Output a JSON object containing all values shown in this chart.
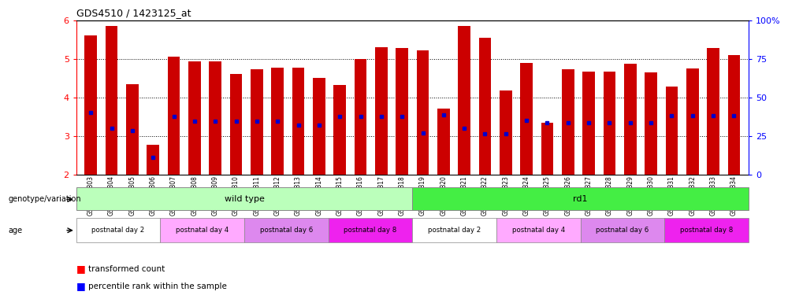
{
  "title": "GDS4510 / 1423125_at",
  "samples": [
    "GSM1024803",
    "GSM1024804",
    "GSM1024805",
    "GSM1024806",
    "GSM1024807",
    "GSM1024808",
    "GSM1024809",
    "GSM1024810",
    "GSM1024811",
    "GSM1024812",
    "GSM1024813",
    "GSM1024814",
    "GSM1024815",
    "GSM1024816",
    "GSM1024817",
    "GSM1024818",
    "GSM1024819",
    "GSM1024820",
    "GSM1024821",
    "GSM1024822",
    "GSM1024823",
    "GSM1024824",
    "GSM1024825",
    "GSM1024826",
    "GSM1024827",
    "GSM1024828",
    "GSM1024829",
    "GSM1024830",
    "GSM1024831",
    "GSM1024832",
    "GSM1024833",
    "GSM1024834"
  ],
  "bar_values": [
    5.6,
    5.85,
    4.35,
    2.78,
    5.05,
    4.93,
    4.93,
    4.6,
    4.73,
    4.76,
    4.76,
    4.5,
    4.33,
    5.0,
    5.3,
    5.27,
    5.22,
    3.72,
    5.84,
    5.55,
    4.17,
    4.9,
    3.35,
    4.73,
    4.66,
    4.66,
    4.88,
    4.65,
    4.29,
    4.75,
    5.28,
    5.1
  ],
  "percentile_values": [
    3.6,
    3.2,
    3.15,
    2.45,
    3.5,
    3.38,
    3.38,
    3.38,
    3.38,
    3.38,
    3.28,
    3.28,
    3.5,
    3.5,
    3.5,
    3.5,
    3.08,
    3.55,
    3.2,
    3.05,
    3.05,
    3.4,
    3.35,
    3.35,
    3.35,
    3.35,
    3.35,
    3.35,
    3.52,
    3.52,
    3.52,
    3.52
  ],
  "ylim_left": [
    2,
    6
  ],
  "ylim_right": [
    0,
    100
  ],
  "yticks_left": [
    2,
    3,
    4,
    5,
    6
  ],
  "yticks_right": [
    0,
    25,
    50,
    75,
    100
  ],
  "bar_color": "#cc0000",
  "percentile_color": "#0000cc",
  "bar_width": 0.6,
  "genotype_wt_color": "#bbffbb",
  "genotype_rd1_color": "#44ee44",
  "age_colors": [
    "#ffffff",
    "#ffaaff",
    "#dd88ee",
    "#ee22ee"
  ],
  "age_labels": [
    "postnatal day 2",
    "postnatal day 4",
    "postnatal day 6",
    "postnatal day 8"
  ],
  "wt_count": 16,
  "rd1_count": 16
}
